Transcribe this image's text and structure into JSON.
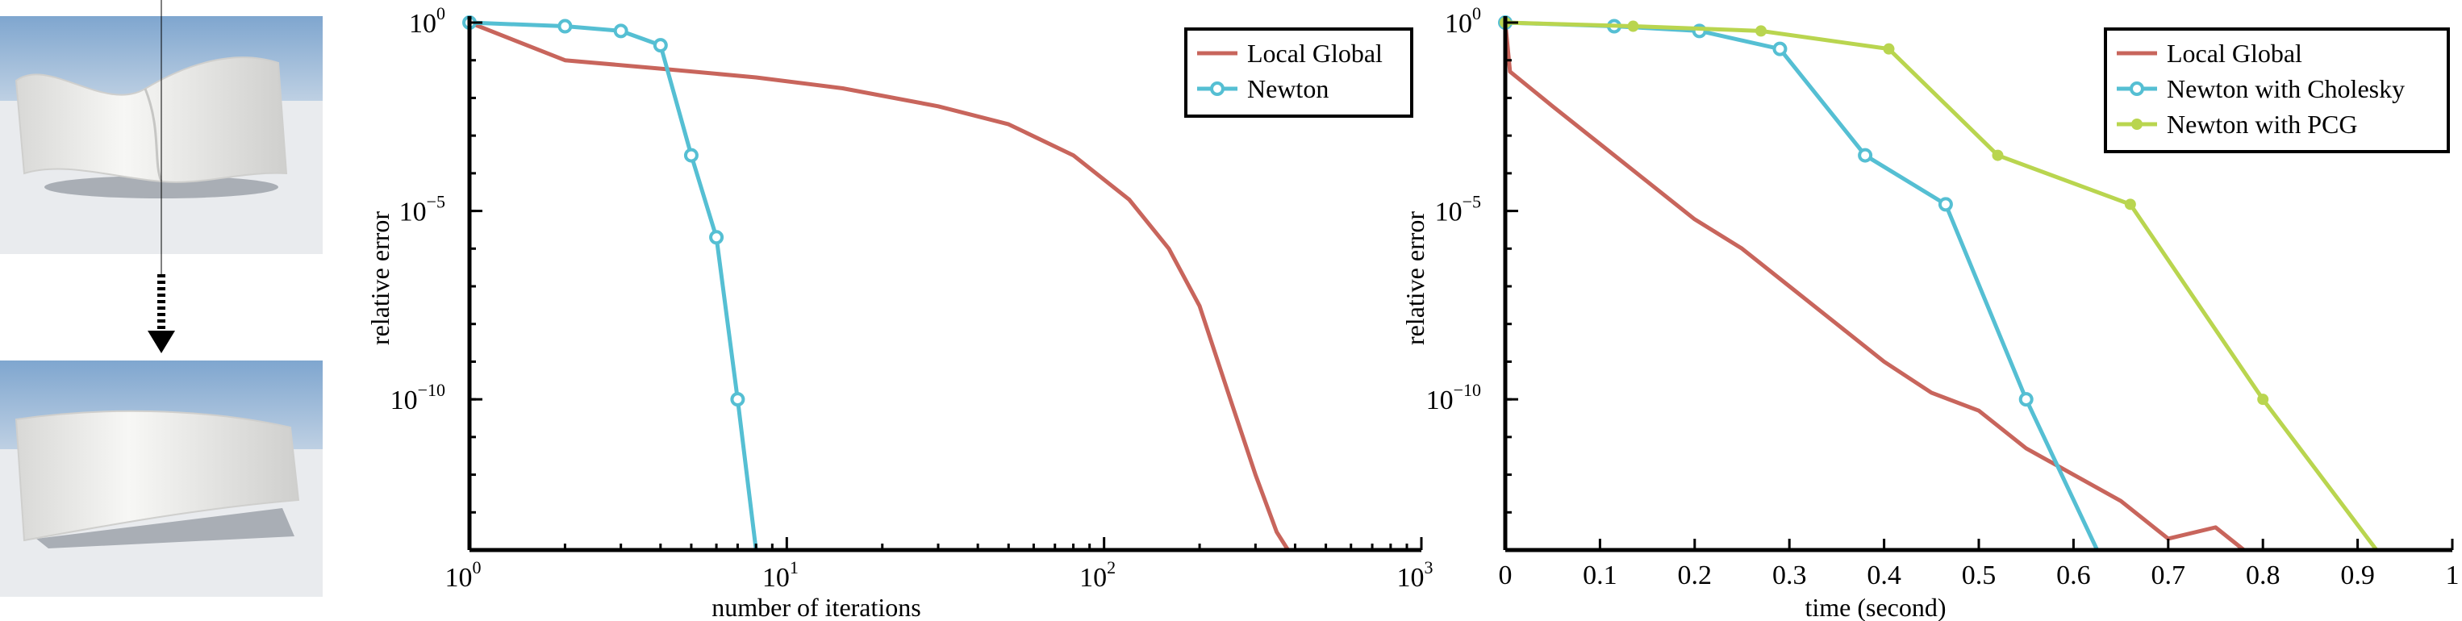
{
  "colors": {
    "local_global": "#c8655c",
    "newton": "#55bfd3",
    "newton_pcg": "#b9d54f",
    "sky_top": "#7fa6cf",
    "sky_bottom": "#b9cde2",
    "ground": "#e9ebee",
    "shape": "#f2f2f0"
  },
  "thumbnails": [
    {
      "name": "twisted-shape-before"
    },
    {
      "name": "untwisted-shape-after"
    }
  ],
  "arrow_icon": "dashed-down-arrow-icon",
  "chart_data": [
    {
      "type": "line",
      "x_scale": "log",
      "y_scale": "log",
      "xlim": [
        1,
        1000
      ],
      "ylim": [
        1e-14,
        1
      ],
      "xlabel": "number of iterations",
      "ylabel": "relative error",
      "x_ticks": [
        {
          "value": 1,
          "base": "10",
          "exp": "0"
        },
        {
          "value": 10,
          "base": "10",
          "exp": "1"
        },
        {
          "value": 100,
          "base": "10",
          "exp": "2"
        },
        {
          "value": 1000,
          "base": "10",
          "exp": "3"
        }
      ],
      "y_ticks": [
        {
          "value": 1,
          "base": "10",
          "exp": "0"
        },
        {
          "value": 1e-05,
          "base": "10",
          "exp": "−5"
        },
        {
          "value": 1e-10,
          "base": "10",
          "exp": "−10"
        }
      ],
      "legend_position": "top-right",
      "series": [
        {
          "name": "Local Global",
          "color_key": "local_global",
          "marker": "none",
          "x": [
            1,
            2,
            4,
            8,
            15,
            30,
            50,
            80,
            120,
            160,
            200,
            250,
            300,
            350,
            380
          ],
          "y": [
            1,
            0.1,
            0.06,
            0.035,
            0.018,
            0.006,
            0.002,
            0.0003,
            2e-05,
            1e-06,
            3e-08,
            1e-10,
            1e-12,
            3e-14,
            1e-14
          ]
        },
        {
          "name": "Newton",
          "color_key": "newton",
          "marker": "circle",
          "x": [
            1,
            2,
            3,
            4,
            5,
            6,
            7,
            8
          ],
          "y": [
            1,
            0.8,
            0.6,
            0.25,
            0.0003,
            2e-06,
            1e-10,
            1e-14
          ]
        }
      ]
    },
    {
      "type": "line",
      "x_scale": "linear",
      "y_scale": "log",
      "xlim": [
        0,
        1
      ],
      "ylim": [
        1e-14,
        1
      ],
      "xlabel": "time (second)",
      "ylabel": "relative error",
      "x_ticks": [
        {
          "value": 0,
          "label": "0"
        },
        {
          "value": 0.1,
          "label": "0.1"
        },
        {
          "value": 0.2,
          "label": "0.2"
        },
        {
          "value": 0.3,
          "label": "0.3"
        },
        {
          "value": 0.4,
          "label": "0.4"
        },
        {
          "value": 0.5,
          "label": "0.5"
        },
        {
          "value": 0.6,
          "label": "0.6"
        },
        {
          "value": 0.7,
          "label": "0.7"
        },
        {
          "value": 0.8,
          "label": "0.8"
        },
        {
          "value": 0.9,
          "label": "0.9"
        },
        {
          "value": 1,
          "label": "1"
        }
      ],
      "y_ticks": [
        {
          "value": 1,
          "base": "10",
          "exp": "0"
        },
        {
          "value": 1e-05,
          "base": "10",
          "exp": "−5"
        },
        {
          "value": 1e-10,
          "base": "10",
          "exp": "−10"
        }
      ],
      "legend_position": "top-right",
      "series": [
        {
          "name": "Local Global",
          "color_key": "local_global",
          "marker": "none",
          "x": [
            0,
            0.005,
            0.05,
            0.1,
            0.15,
            0.2,
            0.25,
            0.3,
            0.35,
            0.4,
            0.45,
            0.5,
            0.55,
            0.6,
            0.65,
            0.7,
            0.75,
            0.78
          ],
          "y": [
            1,
            0.05,
            0.006,
            0.0006,
            6e-05,
            6e-06,
            1e-06,
            1e-07,
            1e-08,
            1e-09,
            1.5e-10,
            5e-11,
            5e-12,
            1e-12,
            2e-13,
            2e-14,
            4e-14,
            1e-14
          ]
        },
        {
          "name": "Newton with Cholesky",
          "color_key": "newton",
          "marker": "circle",
          "x": [
            0,
            0.115,
            0.205,
            0.29,
            0.38,
            0.465,
            0.55,
            0.625
          ],
          "y": [
            1,
            0.8,
            0.6,
            0.2,
            0.0003,
            1.5e-05,
            1e-10,
            1e-14
          ]
        },
        {
          "name": "Newton with PCG",
          "color_key": "newton_pcg",
          "marker": "dot",
          "x": [
            0,
            0.135,
            0.27,
            0.405,
            0.52,
            0.66,
            0.8,
            0.92
          ],
          "y": [
            1,
            0.8,
            0.6,
            0.2,
            0.0003,
            1.5e-05,
            1e-10,
            1e-14
          ]
        }
      ]
    }
  ]
}
